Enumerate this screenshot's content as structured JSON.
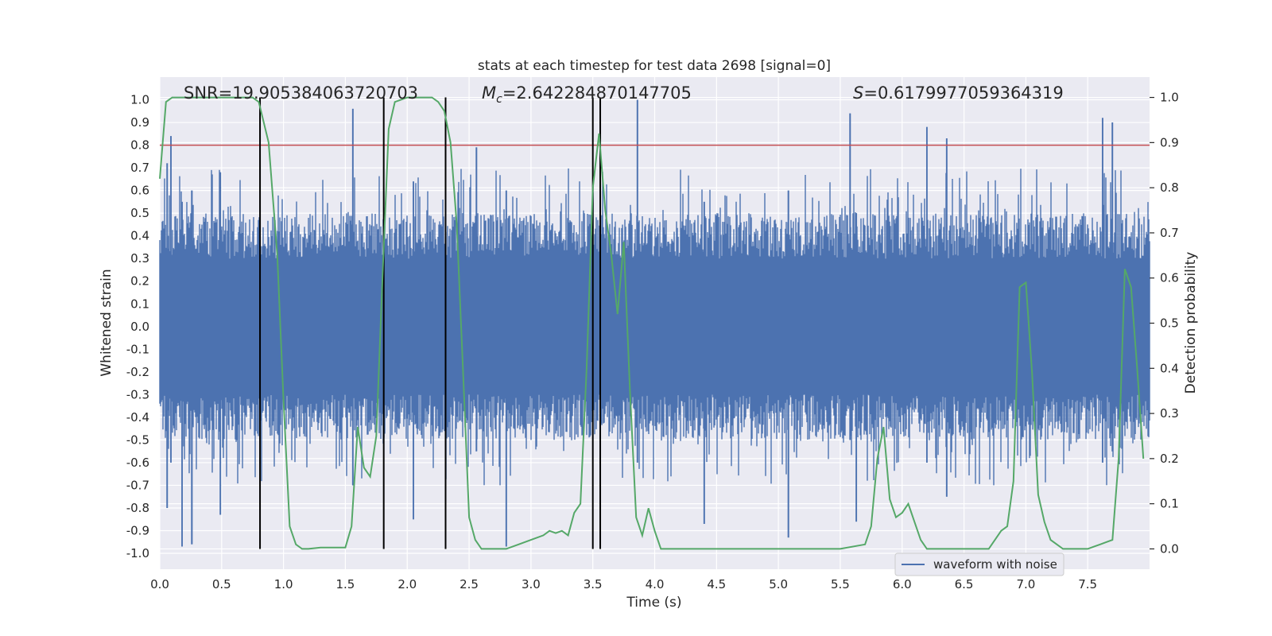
{
  "chart_data": {
    "type": "line",
    "title": "stats at each timestep for test data 2698 [signal=0]",
    "xlabel": "Time (s)",
    "ylabel": "Whitened strain",
    "ylabel_right": "Detection probability",
    "xlim": [
      0.0,
      8.0
    ],
    "ylim": [
      -1.07,
      1.1
    ],
    "ylim_right": [
      -0.045,
      1.045
    ],
    "grid": true,
    "legend_position": "lower-right",
    "x_ticks": [
      "0.0",
      "0.5",
      "1.0",
      "1.5",
      "2.0",
      "2.5",
      "3.0",
      "3.5",
      "4.0",
      "4.5",
      "5.0",
      "5.5",
      "6.0",
      "6.5",
      "7.0",
      "7.5"
    ],
    "y_ticks": [
      "1.0",
      "0.9",
      "0.8",
      "0.7",
      "0.6",
      "0.5",
      "0.4",
      "0.3",
      "0.2",
      "0.1",
      "0.0",
      "-0.1",
      "-0.2",
      "-0.3",
      "-0.4",
      "-0.5",
      "-0.6",
      "-0.7",
      "-0.8",
      "-0.9",
      "-1.0"
    ],
    "y_ticks_right": [
      "1.0",
      "0.9",
      "0.8",
      "0.7",
      "0.6",
      "0.5",
      "0.4",
      "0.3",
      "0.2",
      "0.1",
      "0.0"
    ],
    "annotations": [
      {
        "text": "SNR=19.905384063720703",
        "x": 0.2
      },
      {
        "text": "=2.642284870147705",
        "symbol": "M",
        "subscript": "c",
        "x": 2.6
      },
      {
        "text": "=0.6179977059364319",
        "symbol": "S",
        "x": 5.6
      }
    ],
    "threshold": {
      "value": 0.8,
      "color": "#c44e52"
    },
    "vertical_lines": [
      0.81,
      1.81,
      2.31,
      3.5,
      3.56
    ],
    "series": [
      {
        "name": "waveform with noise",
        "color": "#4c72b0",
        "envelope_peaks": [
          {
            "t": 0.06,
            "top": 0.72,
            "bottom": -0.8
          },
          {
            "t": 0.09,
            "top": 0.84,
            "bottom": -0.6
          },
          {
            "t": 0.18,
            "top": 0.55,
            "bottom": -0.97
          },
          {
            "t": 0.26,
            "top": 0.6,
            "bottom": -0.96
          },
          {
            "t": 0.49,
            "top": 0.68,
            "bottom": -0.83
          },
          {
            "t": 1.56,
            "top": 0.96,
            "bottom": -0.7
          },
          {
            "t": 2.05,
            "top": 0.64,
            "bottom": -0.85
          },
          {
            "t": 2.56,
            "top": 0.79,
            "bottom": -0.55
          },
          {
            "t": 2.8,
            "top": 0.6,
            "bottom": -0.97
          },
          {
            "t": 3.86,
            "top": 1.0,
            "bottom": -0.6
          },
          {
            "t": 4.4,
            "top": 0.55,
            "bottom": -0.87
          },
          {
            "t": 5.08,
            "top": 0.6,
            "bottom": -0.93
          },
          {
            "t": 5.58,
            "top": 0.94,
            "bottom": -0.5
          },
          {
            "t": 5.63,
            "top": 0.5,
            "bottom": -0.86
          },
          {
            "t": 6.2,
            "top": 0.88,
            "bottom": -0.6
          },
          {
            "t": 6.36,
            "top": 0.83,
            "bottom": -0.75
          },
          {
            "t": 7.62,
            "top": 0.92,
            "bottom": -0.6
          },
          {
            "t": 7.7,
            "top": 0.9,
            "bottom": -0.55
          }
        ]
      },
      {
        "name": "detection probability",
        "color": "#55a868",
        "axis": "right",
        "x": [
          0.0,
          0.05,
          0.1,
          0.15,
          0.2,
          0.3,
          0.4,
          0.5,
          0.6,
          0.7,
          0.75,
          0.8,
          0.88,
          0.95,
          1.0,
          1.05,
          1.1,
          1.15,
          1.2,
          1.3,
          1.4,
          1.5,
          1.55,
          1.6,
          1.65,
          1.7,
          1.75,
          1.8,
          1.85,
          1.9,
          2.0,
          2.1,
          2.2,
          2.25,
          2.3,
          2.35,
          2.4,
          2.45,
          2.5,
          2.55,
          2.6,
          2.7,
          2.8,
          2.9,
          3.0,
          3.1,
          3.15,
          3.2,
          3.25,
          3.3,
          3.35,
          3.4,
          3.45,
          3.5,
          3.55,
          3.6,
          3.65,
          3.7,
          3.75,
          3.8,
          3.85,
          3.9,
          3.95,
          4.0,
          4.05,
          4.1,
          4.3,
          4.5,
          4.7,
          4.9,
          5.1,
          5.3,
          5.5,
          5.7,
          5.75,
          5.8,
          5.85,
          5.9,
          5.95,
          6.0,
          6.05,
          6.1,
          6.15,
          6.2,
          6.25,
          6.3,
          6.5,
          6.7,
          6.75,
          6.8,
          6.85,
          6.9,
          6.95,
          7.0,
          7.05,
          7.1,
          7.15,
          7.2,
          7.3,
          7.4,
          7.5,
          7.55,
          7.6,
          7.65,
          7.7,
          7.75,
          7.8,
          7.85,
          7.9,
          7.95
        ],
        "y": [
          0.82,
          0.99,
          1.0,
          1.0,
          1.0,
          1.0,
          1.0,
          1.0,
          1.0,
          1.0,
          1.0,
          0.99,
          0.9,
          0.65,
          0.33,
          0.05,
          0.01,
          0.0,
          0.0,
          0.003,
          0.003,
          0.003,
          0.05,
          0.27,
          0.18,
          0.16,
          0.25,
          0.6,
          0.93,
          0.99,
          1.0,
          1.0,
          1.0,
          0.99,
          0.97,
          0.9,
          0.72,
          0.4,
          0.07,
          0.02,
          0.0,
          0.0,
          0.0,
          0.01,
          0.02,
          0.03,
          0.04,
          0.035,
          0.04,
          0.03,
          0.08,
          0.1,
          0.4,
          0.8,
          0.92,
          0.75,
          0.65,
          0.52,
          0.68,
          0.35,
          0.07,
          0.03,
          0.09,
          0.04,
          0.0,
          0.0,
          0.0,
          0.0,
          0.0,
          0.0,
          0.0,
          0.0,
          0.0,
          0.01,
          0.05,
          0.2,
          0.27,
          0.11,
          0.07,
          0.08,
          0.1,
          0.06,
          0.02,
          0.0,
          0.0,
          0.0,
          0.0,
          0.0,
          0.02,
          0.04,
          0.05,
          0.15,
          0.58,
          0.59,
          0.39,
          0.12,
          0.06,
          0.02,
          0.0,
          0.0,
          0.0,
          0.005,
          0.01,
          0.015,
          0.02,
          0.2,
          0.62,
          0.58,
          0.4,
          0.2
        ]
      }
    ],
    "legend": [
      {
        "label": "waveform with noise",
        "color": "#4c72b0"
      }
    ]
  }
}
